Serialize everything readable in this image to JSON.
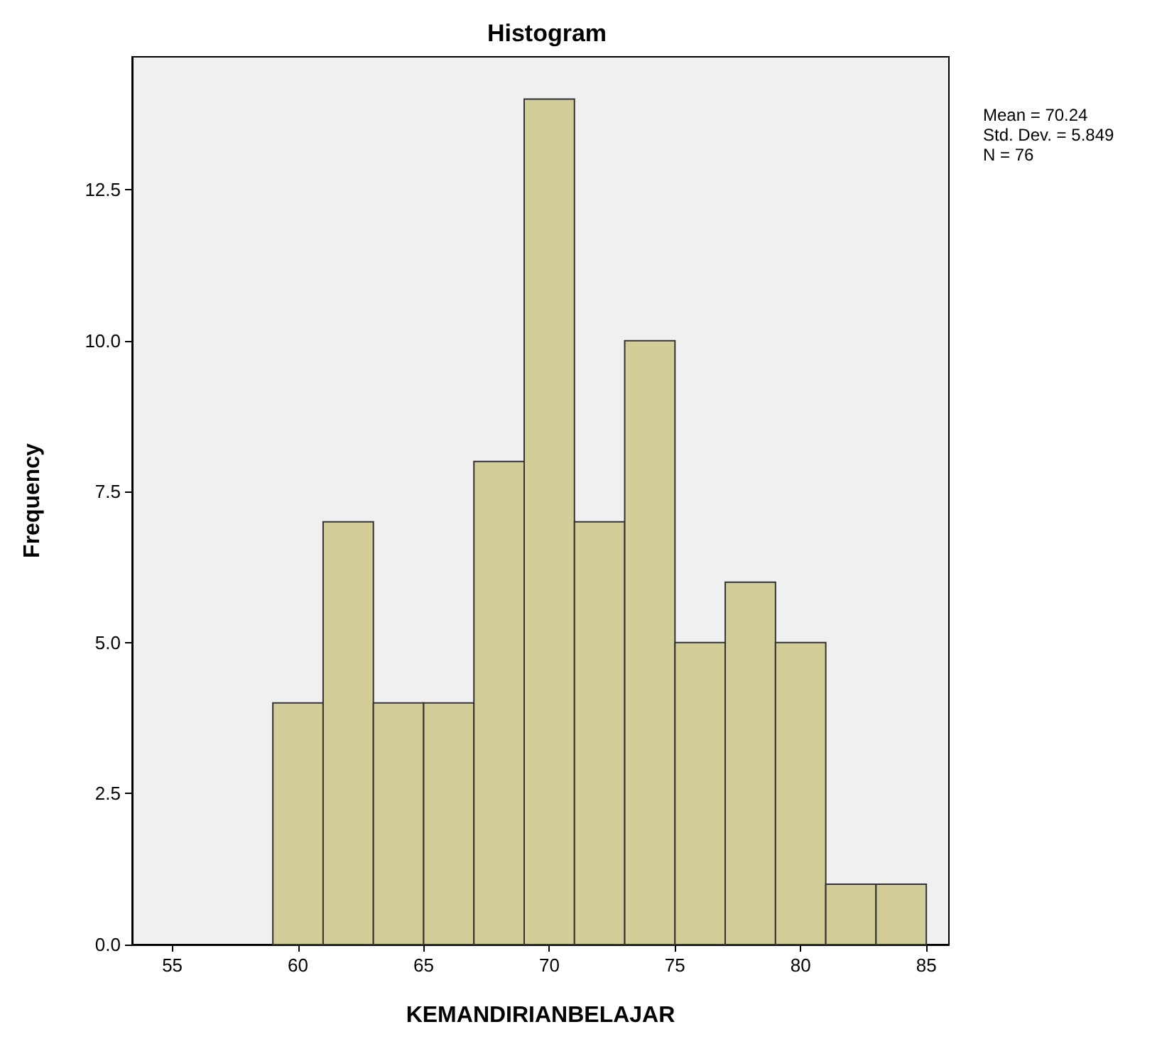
{
  "chart_data": {
    "type": "histogram",
    "title": "Histogram",
    "xlabel": "KEMANDIRIANBELAJAR",
    "ylabel": "Frequency",
    "bins": [
      59,
      61,
      63,
      65,
      67,
      69,
      71,
      73,
      75,
      77,
      79,
      81,
      83,
      85
    ],
    "values": [
      4,
      7,
      4,
      4,
      8,
      14,
      7,
      10,
      5,
      6,
      5,
      1,
      1
    ],
    "color": "#d3ce97",
    "xlim": [
      53.4,
      85.9
    ],
    "xticks": [
      55,
      60,
      65,
      70,
      75,
      80,
      85
    ],
    "ylim": [
      0,
      14.7
    ],
    "yticks": [
      {
        "value": 0,
        "label": "0.0"
      },
      {
        "value": 2.5,
        "label": "2.5"
      },
      {
        "value": 5,
        "label": "5.0"
      },
      {
        "value": 7.5,
        "label": "7.5"
      },
      {
        "value": 10,
        "label": "10.0"
      },
      {
        "value": 12.5,
        "label": "12.5"
      }
    ],
    "grid": false,
    "annotations": [
      "Mean = 70.24",
      "Std. Dev. = 5.849",
      "N = 76"
    ]
  }
}
